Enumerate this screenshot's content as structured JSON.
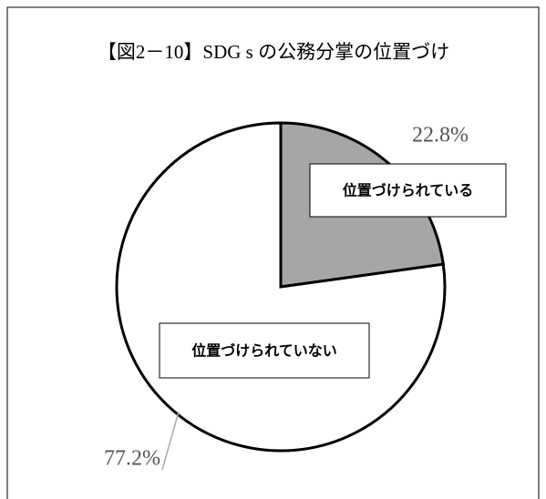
{
  "chart_data": {
    "type": "pie",
    "title": "【図2－10】SDG s の公務分掌の位置づけ",
    "categories": [
      "位置づけられている",
      "位置づけられていない"
    ],
    "values": [
      22.8,
      77.2
    ],
    "value_labels": [
      "22.8%",
      "77.2%"
    ],
    "colors": [
      "#a6a6a6",
      "#ffffff"
    ]
  }
}
